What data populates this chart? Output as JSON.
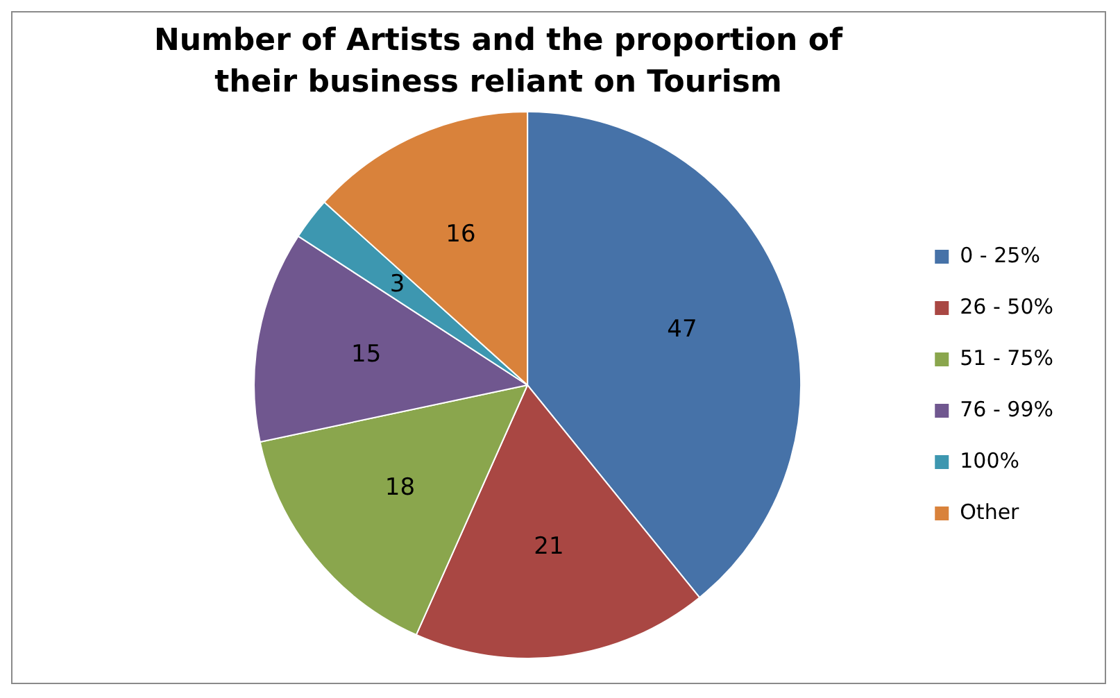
{
  "chart_data": {
    "type": "pie",
    "title": "Number of Artists and the proportion of their business reliant on Tourism",
    "categories": [
      "0 - 25%",
      "26 - 50%",
      "51 - 75%",
      "76 - 99%",
      "100%",
      "Other"
    ],
    "values": [
      47,
      21,
      18,
      15,
      3,
      16
    ],
    "colors": [
      "#4672a8",
      "#a94743",
      "#8aa64d",
      "#70578f",
      "#3d97b0",
      "#d9823b"
    ],
    "data_labels": true,
    "legend": "right"
  }
}
